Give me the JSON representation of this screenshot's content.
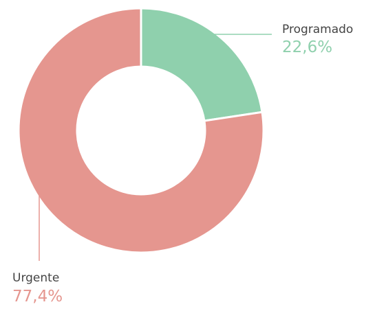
{
  "chart_data": {
    "type": "donut",
    "categories": [
      "Programado",
      "Urgente"
    ],
    "values": [
      22.6,
      77.4
    ],
    "value_labels": [
      "22,6%",
      "77,4%"
    ],
    "colors": [
      "#8fd0ad",
      "#e5968f"
    ]
  }
}
